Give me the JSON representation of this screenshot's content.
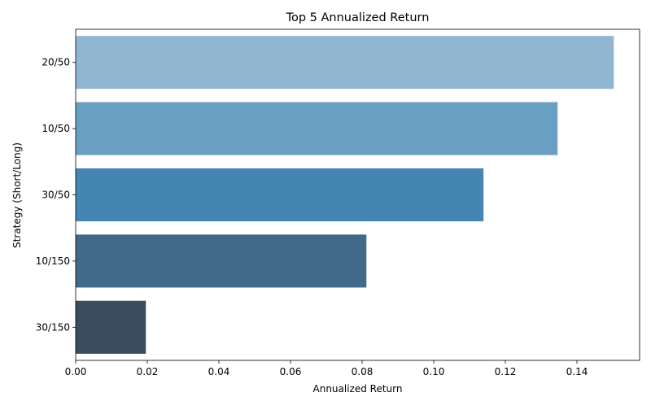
{
  "chart_data": {
    "type": "bar",
    "orientation": "horizontal",
    "title": "Top 5 Annualized Return",
    "xlabel": "Annualized Return",
    "ylabel": "Strategy (Short/Long)",
    "categories": [
      "20/50",
      "10/50",
      "30/50",
      "10/150",
      "30/150"
    ],
    "values": [
      0.1503,
      0.1346,
      0.1139,
      0.0812,
      0.0196
    ],
    "colors": [
      "#91b6d2",
      "#6a9fc3",
      "#4585b4",
      "#426a88",
      "#3a4c5d"
    ],
    "xlim": [
      0,
      0.1575
    ],
    "xticks": [
      "0.00",
      "0.02",
      "0.04",
      "0.06",
      "0.08",
      "0.10",
      "0.12",
      "0.14"
    ],
    "grid": false,
    "legend": "none"
  }
}
